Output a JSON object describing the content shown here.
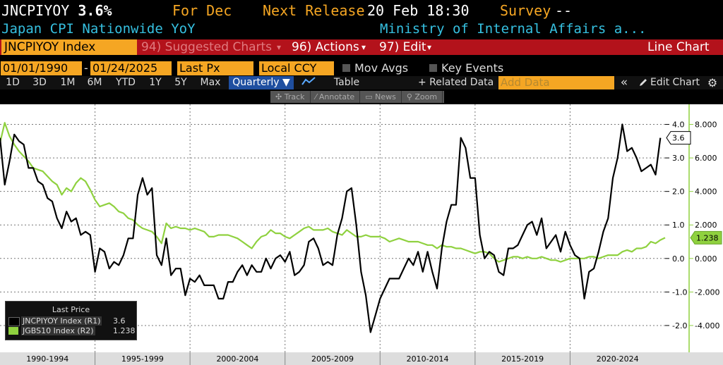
{
  "header": {
    "ticker": "JNCPIYOY",
    "value": "3.6%",
    "for_label": "For Dec",
    "next_release_label": "Next Release",
    "next_release": "20 Feb 18:30",
    "survey_label": "Survey",
    "survey_value": "--",
    "subtitle_left": "Japan CPI Nationwide YoY",
    "subtitle_right": "Ministry of Internal Affairs a..."
  },
  "toolbar": {
    "ticker_box": "JNCPIYOY Index",
    "suggested": "94) Suggested Charts",
    "suggested_arrow": "▾",
    "actions": "96) Actions",
    "actions_arrow": "▾",
    "edit": "97) Edit",
    "edit_arrow": "▾",
    "chart_type": "Line Chart"
  },
  "range": {
    "start": "01/01/1990",
    "dash": "-",
    "end": "01/24/2025",
    "field": "Last Px",
    "currency": "Local CCY",
    "mov_avgs": "Mov Avgs",
    "key_events": "Key Events"
  },
  "periods": [
    "1D",
    "3D",
    "1M",
    "6M",
    "YTD",
    "1Y",
    "5Y",
    "Max"
  ],
  "frequency": "Quarterly ▼",
  "table_label": "Table",
  "related_label": "+ Related Data",
  "add_data_placeholder": "Add Data",
  "chevrons": "«",
  "edit_chart": "Edit Chart",
  "float_tools": [
    "Track",
    "Annotate",
    "News",
    "Zoom"
  ],
  "colors": {
    "bg": "#000000",
    "accent": "#f5a623",
    "toolbar": "#b3121b",
    "series1": "#000000",
    "series2": "#8fd13f",
    "subtitle": "#36c0e0"
  },
  "chart_data": {
    "type": "line",
    "x_labels": [
      "1990-1994",
      "1995-1999",
      "2000-2004",
      "2005-2009",
      "2010-2014",
      "2015-2019",
      "2020-2024"
    ],
    "x_range": [
      1990.0,
      2025.0
    ],
    "y1_ticks": [
      "4.0",
      "3.0",
      "2.0",
      "1.0",
      "0.0",
      "-1.0",
      "-2.0"
    ],
    "y1_range": [
      -2.8,
      4.6
    ],
    "y2_ticks": [
      "8.000",
      "6.000",
      "4.000",
      "2.000",
      "0.000",
      "-2.000",
      "-4.000"
    ],
    "y2_range": [
      -5.6,
      9.2
    ],
    "legend_title": "Last Price",
    "series": [
      {
        "name": "JNCPIYOY Index  (R1)",
        "last": "3.6",
        "last_label": "3.6",
        "points": [
          [
            1990.0,
            3.6
          ],
          [
            1990.25,
            2.2
          ],
          [
            1990.5,
            2.9
          ],
          [
            1990.75,
            3.7
          ],
          [
            1991.0,
            3.5
          ],
          [
            1991.25,
            3.4
          ],
          [
            1991.5,
            2.7
          ],
          [
            1991.75,
            2.7
          ],
          [
            1992.0,
            2.3
          ],
          [
            1992.25,
            2.2
          ],
          [
            1992.5,
            1.8
          ],
          [
            1992.75,
            1.7
          ],
          [
            1993.0,
            1.2
          ],
          [
            1993.25,
            0.9
          ],
          [
            1993.5,
            1.4
          ],
          [
            1993.75,
            1.1
          ],
          [
            1994.0,
            1.2
          ],
          [
            1994.25,
            0.7
          ],
          [
            1994.5,
            0.8
          ],
          [
            1994.75,
            0.7
          ],
          [
            1995.0,
            -0.4
          ],
          [
            1995.25,
            0.3
          ],
          [
            1995.5,
            0.2
          ],
          [
            1995.75,
            -0.3
          ],
          [
            1996.0,
            -0.1
          ],
          [
            1996.25,
            -0.2
          ],
          [
            1996.5,
            0.1
          ],
          [
            1996.75,
            0.6
          ],
          [
            1997.0,
            0.6
          ],
          [
            1997.25,
            1.9
          ],
          [
            1997.5,
            2.4
          ],
          [
            1997.75,
            1.9
          ],
          [
            1998.0,
            2.1
          ],
          [
            1998.25,
            0.1
          ],
          [
            1998.5,
            -0.2
          ],
          [
            1998.75,
            0.6
          ],
          [
            1999.0,
            -0.5
          ],
          [
            1999.25,
            -0.3
          ],
          [
            1999.5,
            -0.3
          ],
          [
            1999.75,
            -1.1
          ],
          [
            2000.0,
            -0.6
          ],
          [
            2000.25,
            -0.7
          ],
          [
            2000.5,
            -0.5
          ],
          [
            2000.75,
            -0.8
          ],
          [
            2001.0,
            -0.8
          ],
          [
            2001.25,
            -0.8
          ],
          [
            2001.5,
            -1.2
          ],
          [
            2001.75,
            -1.2
          ],
          [
            2002.0,
            -0.7
          ],
          [
            2002.25,
            -0.7
          ],
          [
            2002.5,
            -0.4
          ],
          [
            2002.75,
            -0.2
          ],
          [
            2003.0,
            -0.5
          ],
          [
            2003.25,
            -0.2
          ],
          [
            2003.5,
            -0.4
          ],
          [
            2003.75,
            -0.4
          ],
          [
            2004.0,
            0.0
          ],
          [
            2004.25,
            -0.3
          ],
          [
            2004.5,
            0.0
          ],
          [
            2004.75,
            0.1
          ],
          [
            2005.0,
            -0.1
          ],
          [
            2005.25,
            0.2
          ],
          [
            2005.5,
            -0.5
          ],
          [
            2005.75,
            -0.4
          ],
          [
            2006.0,
            -0.2
          ],
          [
            2006.25,
            0.5
          ],
          [
            2006.5,
            0.6
          ],
          [
            2006.75,
            0.3
          ],
          [
            2007.0,
            -0.2
          ],
          [
            2007.25,
            -0.1
          ],
          [
            2007.5,
            -0.2
          ],
          [
            2007.75,
            0.7
          ],
          [
            2008.0,
            1.2
          ],
          [
            2008.25,
            2.0
          ],
          [
            2008.5,
            2.1
          ],
          [
            2008.75,
            1.0
          ],
          [
            2009.0,
            -0.4
          ],
          [
            2009.25,
            -1.1
          ],
          [
            2009.5,
            -2.2
          ],
          [
            2009.75,
            -1.7
          ],
          [
            2010.0,
            -1.2
          ],
          [
            2010.25,
            -0.9
          ],
          [
            2010.5,
            -0.6
          ],
          [
            2010.75,
            -0.6
          ],
          [
            2011.0,
            -0.6
          ],
          [
            2011.25,
            -0.3
          ],
          [
            2011.5,
            0.0
          ],
          [
            2011.75,
            -0.2
          ],
          [
            2012.0,
            0.2
          ],
          [
            2012.25,
            -0.4
          ],
          [
            2012.5,
            0.2
          ],
          [
            2012.75,
            -0.4
          ],
          [
            2013.0,
            -0.9
          ],
          [
            2013.25,
            0.3
          ],
          [
            2013.5,
            1.1
          ],
          [
            2013.75,
            1.6
          ],
          [
            2014.0,
            1.6
          ],
          [
            2014.25,
            3.6
          ],
          [
            2014.5,
            3.3
          ],
          [
            2014.75,
            2.4
          ],
          [
            2015.0,
            2.4
          ],
          [
            2015.25,
            0.7
          ],
          [
            2015.5,
            0.0
          ],
          [
            2015.75,
            0.2
          ],
          [
            2016.0,
            0.1
          ],
          [
            2016.25,
            -0.4
          ],
          [
            2016.5,
            -0.5
          ],
          [
            2016.75,
            0.3
          ],
          [
            2017.0,
            0.3
          ],
          [
            2017.25,
            0.4
          ],
          [
            2017.5,
            0.7
          ],
          [
            2017.75,
            1.0
          ],
          [
            2018.0,
            1.1
          ],
          [
            2018.25,
            0.7
          ],
          [
            2018.5,
            1.2
          ],
          [
            2018.75,
            0.3
          ],
          [
            2019.0,
            0.5
          ],
          [
            2019.25,
            0.7
          ],
          [
            2019.5,
            0.2
          ],
          [
            2019.75,
            0.8
          ],
          [
            2020.0,
            0.4
          ],
          [
            2020.25,
            0.1
          ],
          [
            2020.5,
            0.0
          ],
          [
            2020.75,
            -1.2
          ],
          [
            2021.0,
            -0.4
          ],
          [
            2021.25,
            -0.3
          ],
          [
            2021.5,
            0.2
          ],
          [
            2021.75,
            0.8
          ],
          [
            2022.0,
            1.2
          ],
          [
            2022.25,
            2.4
          ],
          [
            2022.5,
            3.0
          ],
          [
            2022.75,
            4.0
          ],
          [
            2023.0,
            3.2
          ],
          [
            2023.25,
            3.3
          ],
          [
            2023.5,
            3.0
          ],
          [
            2023.75,
            2.6
          ],
          [
            2024.0,
            2.7
          ],
          [
            2024.25,
            2.8
          ],
          [
            2024.5,
            2.5
          ],
          [
            2024.75,
            3.6
          ]
        ]
      },
      {
        "name": "JGBS10 Index  (R2)",
        "last": "1.238",
        "last_label": "1.238",
        "points": [
          [
            1990.0,
            6.9
          ],
          [
            1990.25,
            8.1
          ],
          [
            1990.5,
            7.3
          ],
          [
            1990.75,
            6.8
          ],
          [
            1991.0,
            6.4
          ],
          [
            1991.25,
            6.1
          ],
          [
            1991.5,
            5.8
          ],
          [
            1991.75,
            5.4
          ],
          [
            1992.0,
            5.3
          ],
          [
            1992.25,
            5.2
          ],
          [
            1992.5,
            4.9
          ],
          [
            1992.75,
            4.6
          ],
          [
            1993.0,
            4.4
          ],
          [
            1993.25,
            3.8
          ],
          [
            1993.5,
            4.2
          ],
          [
            1993.75,
            4.0
          ],
          [
            1994.0,
            4.5
          ],
          [
            1994.25,
            4.8
          ],
          [
            1994.5,
            4.6
          ],
          [
            1994.75,
            4.1
          ],
          [
            1995.0,
            3.5
          ],
          [
            1995.25,
            3.1
          ],
          [
            1995.5,
            3.2
          ],
          [
            1995.75,
            3.3
          ],
          [
            1996.0,
            3.1
          ],
          [
            1996.25,
            2.8
          ],
          [
            1996.5,
            2.7
          ],
          [
            1996.75,
            2.4
          ],
          [
            1997.0,
            2.3
          ],
          [
            1997.25,
            2.0
          ],
          [
            1997.5,
            1.8
          ],
          [
            1997.75,
            1.7
          ],
          [
            1998.0,
            1.6
          ],
          [
            1998.25,
            1.3
          ],
          [
            1998.5,
            0.9
          ],
          [
            1998.75,
            2.1
          ],
          [
            1999.0,
            1.8
          ],
          [
            1999.25,
            1.9
          ],
          [
            1999.5,
            1.8
          ],
          [
            1999.75,
            1.8
          ],
          [
            2000.0,
            1.7
          ],
          [
            2000.25,
            1.8
          ],
          [
            2000.5,
            1.7
          ],
          [
            2000.75,
            1.6
          ],
          [
            2001.0,
            1.3
          ],
          [
            2001.25,
            1.3
          ],
          [
            2001.5,
            1.4
          ],
          [
            2001.75,
            1.4
          ],
          [
            2002.0,
            1.4
          ],
          [
            2002.25,
            1.3
          ],
          [
            2002.5,
            1.2
          ],
          [
            2002.75,
            1.0
          ],
          [
            2003.0,
            0.8
          ],
          [
            2003.25,
            0.6
          ],
          [
            2003.5,
            1.0
          ],
          [
            2003.75,
            1.3
          ],
          [
            2004.0,
            1.4
          ],
          [
            2004.25,
            1.7
          ],
          [
            2004.5,
            1.5
          ],
          [
            2004.75,
            1.5
          ],
          [
            2005.0,
            1.3
          ],
          [
            2005.25,
            1.2
          ],
          [
            2005.5,
            1.4
          ],
          [
            2005.75,
            1.6
          ],
          [
            2006.0,
            1.8
          ],
          [
            2006.25,
            1.9
          ],
          [
            2006.5,
            1.7
          ],
          [
            2006.75,
            1.7
          ],
          [
            2007.0,
            1.7
          ],
          [
            2007.25,
            1.8
          ],
          [
            2007.5,
            1.6
          ],
          [
            2007.75,
            1.5
          ],
          [
            2008.0,
            1.4
          ],
          [
            2008.25,
            1.7
          ],
          [
            2008.5,
            1.5
          ],
          [
            2008.75,
            1.3
          ],
          [
            2009.0,
            1.3
          ],
          [
            2009.25,
            1.4
          ],
          [
            2009.5,
            1.3
          ],
          [
            2009.75,
            1.3
          ],
          [
            2010.0,
            1.3
          ],
          [
            2010.25,
            1.2
          ],
          [
            2010.5,
            1.0
          ],
          [
            2010.75,
            1.1
          ],
          [
            2011.0,
            1.2
          ],
          [
            2011.25,
            1.1
          ],
          [
            2011.5,
            1.0
          ],
          [
            2011.75,
            1.0
          ],
          [
            2012.0,
            1.0
          ],
          [
            2012.25,
            0.9
          ],
          [
            2012.5,
            0.8
          ],
          [
            2012.75,
            0.8
          ],
          [
            2013.0,
            0.6
          ],
          [
            2013.25,
            0.8
          ],
          [
            2013.5,
            0.7
          ],
          [
            2013.75,
            0.7
          ],
          [
            2014.0,
            0.6
          ],
          [
            2014.25,
            0.6
          ],
          [
            2014.5,
            0.5
          ],
          [
            2014.75,
            0.4
          ],
          [
            2015.0,
            0.3
          ],
          [
            2015.25,
            0.4
          ],
          [
            2015.5,
            0.4
          ],
          [
            2015.75,
            0.3
          ],
          [
            2016.0,
            0.0
          ],
          [
            2016.25,
            -0.2
          ],
          [
            2016.5,
            -0.1
          ],
          [
            2016.75,
            0.0
          ],
          [
            2017.0,
            0.1
          ],
          [
            2017.25,
            0.1
          ],
          [
            2017.5,
            0.0
          ],
          [
            2017.75,
            0.1
          ],
          [
            2018.0,
            0.0
          ],
          [
            2018.25,
            0.0
          ],
          [
            2018.5,
            0.1
          ],
          [
            2018.75,
            0.0
          ],
          [
            2019.0,
            -0.1
          ],
          [
            2019.25,
            -0.1
          ],
          [
            2019.5,
            -0.2
          ],
          [
            2019.75,
            -0.1
          ],
          [
            2020.0,
            0.0
          ],
          [
            2020.25,
            0.0
          ],
          [
            2020.5,
            0.0
          ],
          [
            2020.75,
            0.0
          ],
          [
            2021.0,
            0.1
          ],
          [
            2021.25,
            0.1
          ],
          [
            2021.5,
            0.0
          ],
          [
            2021.75,
            0.1
          ],
          [
            2022.0,
            0.2
          ],
          [
            2022.25,
            0.2
          ],
          [
            2022.5,
            0.2
          ],
          [
            2022.75,
            0.4
          ],
          [
            2023.0,
            0.5
          ],
          [
            2023.25,
            0.4
          ],
          [
            2023.5,
            0.6
          ],
          [
            2023.75,
            0.6
          ],
          [
            2024.0,
            0.7
          ],
          [
            2024.25,
            1.0
          ],
          [
            2024.5,
            0.9
          ],
          [
            2024.75,
            1.1
          ],
          [
            2025.0,
            1.238
          ]
        ]
      }
    ]
  }
}
